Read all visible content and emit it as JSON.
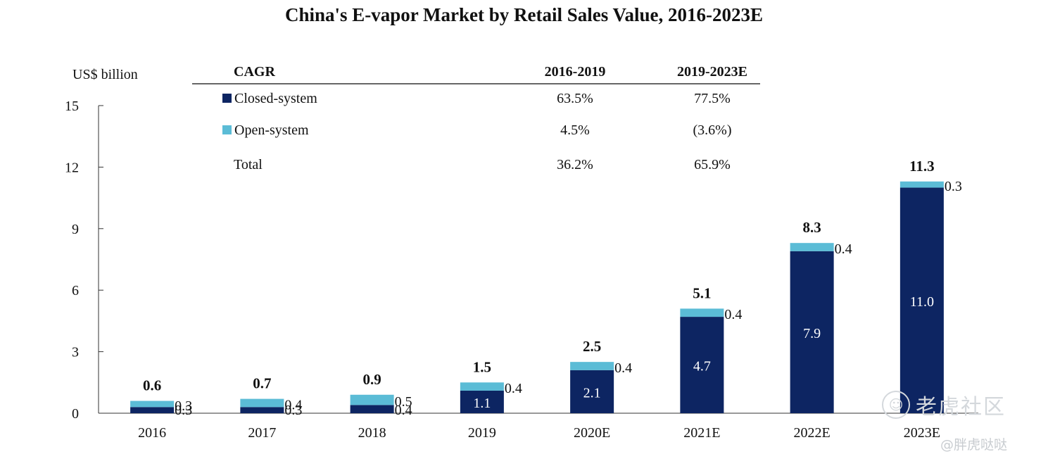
{
  "chart_data": {
    "type": "bar",
    "stacked": true,
    "title": "China's E-vapor Market by Retail Sales Value, 2016-2023E",
    "ylabel": "US$ billion",
    "xlabel": "",
    "ylim": [
      0,
      15
    ],
    "yticks": [
      0,
      3,
      6,
      9,
      12,
      15
    ],
    "grid": false,
    "categories": [
      "2016",
      "2017",
      "2018",
      "2019",
      "2020E",
      "2021E",
      "2022E",
      "2023E"
    ],
    "series": [
      {
        "name": "Closed-system",
        "color": "#0d2562",
        "values": [
          0.3,
          0.3,
          0.4,
          1.1,
          2.1,
          4.7,
          7.9,
          11.0
        ],
        "labels": [
          "0.3",
          "0.3",
          "0.4",
          "1.1",
          "2.1",
          "4.7",
          "7.9",
          "11.0"
        ]
      },
      {
        "name": "Open-system",
        "color": "#5bbcd6",
        "values": [
          0.3,
          0.4,
          0.5,
          0.4,
          0.4,
          0.4,
          0.4,
          0.3
        ],
        "labels": [
          "0.3",
          "0.4",
          "0.5",
          "0.4",
          "0.4",
          "0.4",
          "0.4",
          "0.3"
        ]
      }
    ],
    "totals": [
      "0.6",
      "0.7",
      "0.9",
      "1.5",
      "2.5",
      "5.1",
      "8.3",
      "11.3"
    ],
    "cagr_table": {
      "header": [
        "CAGR",
        "2016-2019",
        "2019-2023E"
      ],
      "rows": [
        {
          "label": "Closed-system",
          "color": "#0d2562",
          "values": [
            "63.5%",
            "77.5%"
          ]
        },
        {
          "label": "Open-system",
          "color": "#5bbcd6",
          "values": [
            "4.5%",
            "(3.6%)"
          ]
        },
        {
          "label": "Total",
          "color": "",
          "values": [
            "36.2%",
            "65.9%"
          ]
        }
      ]
    }
  },
  "watermark": {
    "logo_icon": "tiger-logo-icon",
    "brand": "老虎社区",
    "author": "@胖虎哒哒"
  }
}
